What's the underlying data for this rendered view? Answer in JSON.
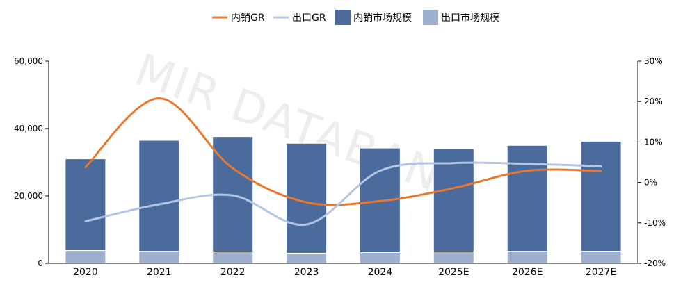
{
  "watermark": "MIR DATABANK",
  "chart_data": {
    "type": "bar",
    "categories": [
      "2020",
      "2021",
      "2022",
      "2023",
      "2024",
      "2025E",
      "2026E",
      "2027E"
    ],
    "series": [
      {
        "name": "出口市场规模",
        "kind": "bar",
        "axis": "left",
        "color": "#9fb0cf",
        "values": [
          3800,
          3600,
          3400,
          3000,
          3200,
          3400,
          3600,
          3600
        ]
      },
      {
        "name": "内销市场规模",
        "kind": "bar",
        "axis": "left",
        "color": "#4a6b9c",
        "values": [
          27200,
          32900,
          34200,
          32600,
          31000,
          30600,
          31400,
          32600
        ]
      },
      {
        "name": "内销GR",
        "kind": "line",
        "axis": "right",
        "color": "#e8782f",
        "values": [
          3.8,
          20.8,
          3.5,
          -4.9,
          -4.6,
          -1.4,
          2.9,
          2.8
        ]
      },
      {
        "name": "出口GR",
        "kind": "line",
        "axis": "right",
        "color": "#b4c5e4",
        "values": [
          -9.6,
          -5.4,
          -3.2,
          -10.4,
          2.9,
          4.8,
          4.6,
          4.0
        ]
      }
    ],
    "legend_order": [
      "内销GR",
      "出口GR",
      "内销市场规模",
      "出口市场规模"
    ],
    "legend_position": "top",
    "left_axis": {
      "min": 0,
      "max": 60000,
      "ticks": [
        "0",
        "20,000",
        "40,000",
        "60,000"
      ],
      "tick_values": [
        0,
        20000,
        40000,
        60000
      ]
    },
    "right_axis": {
      "min": -20,
      "max": 30,
      "ticks": [
        "-20%",
        "-10%",
        "0%",
        "10%",
        "20%",
        "30%"
      ],
      "tick_values": [
        -20,
        -10,
        0,
        10,
        20,
        30
      ]
    },
    "grid": false
  }
}
